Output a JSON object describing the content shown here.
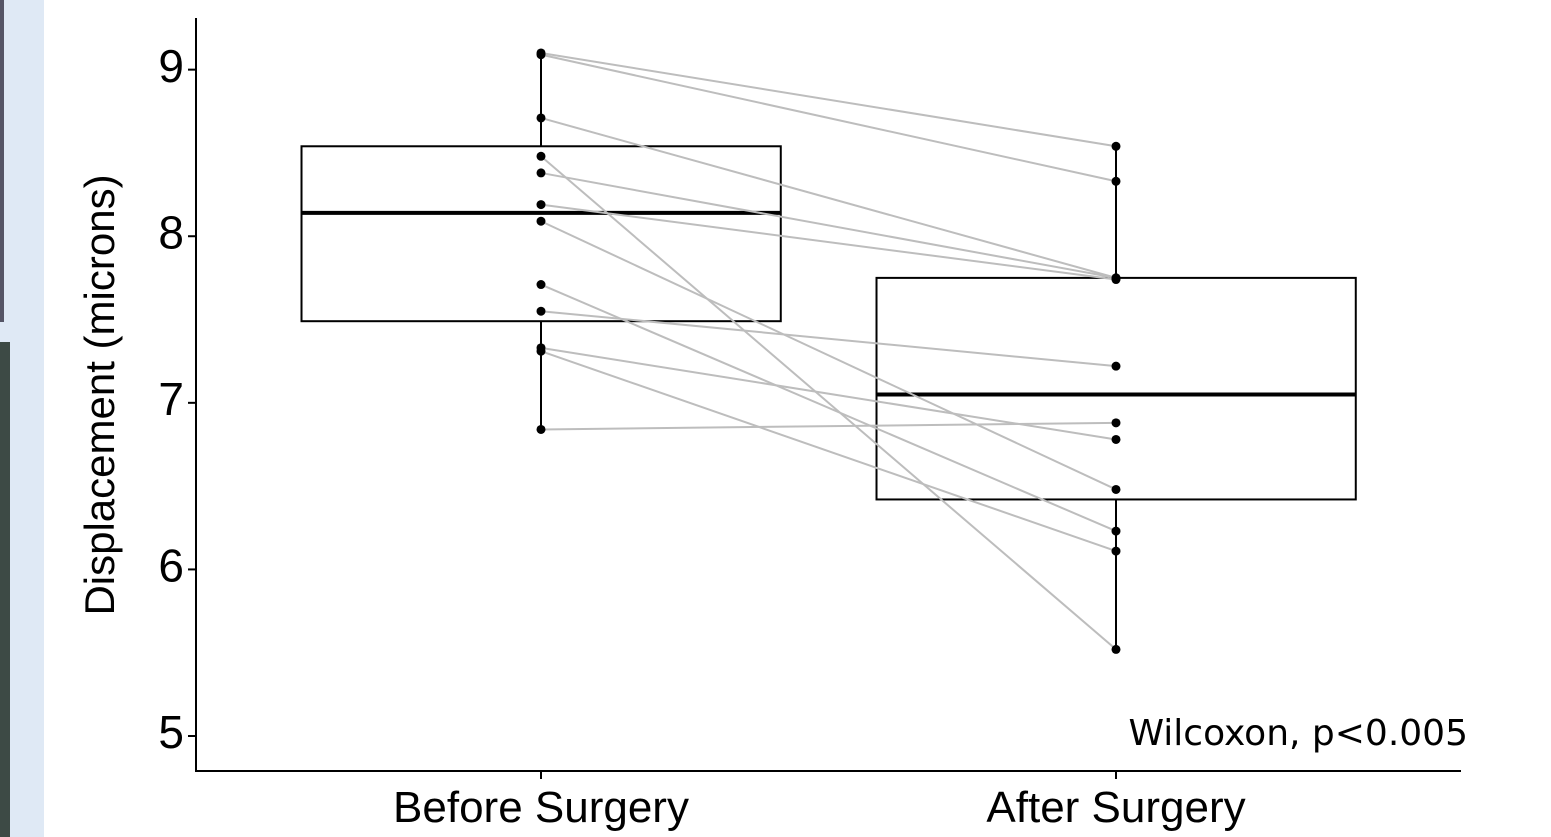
{
  "chart_data": {
    "type": "paired-box",
    "y_label": "Displacement (microns)",
    "annotation": "Wilcoxon, p<0.005",
    "groups": [
      {
        "category": "Before Surgery",
        "values": [
          9.1,
          9.09,
          8.71,
          8.48,
          8.38,
          8.19,
          8.09,
          7.71,
          7.55,
          7.33,
          7.31,
          6.84
        ],
        "box": {
          "whisker_low": 6.84,
          "q1": 7.49,
          "median": 8.14,
          "q3": 8.54,
          "whisker_high": 9.1
        }
      },
      {
        "category": "After Surgery",
        "values": [
          8.54,
          8.33,
          7.75,
          5.52,
          7.75,
          7.74,
          6.48,
          6.23,
          7.22,
          6.78,
          6.11,
          6.88
        ],
        "box": {
          "whisker_low": 5.52,
          "q1": 6.42,
          "median": 7.05,
          "q3": 7.75,
          "whisker_high": 8.54
        }
      }
    ],
    "pair_line_color": "#bdbdbd",
    "point_color": "#000000",
    "ylim": [
      4.79,
      9.31
    ],
    "yticks": [
      5,
      6,
      7,
      8,
      9
    ]
  }
}
